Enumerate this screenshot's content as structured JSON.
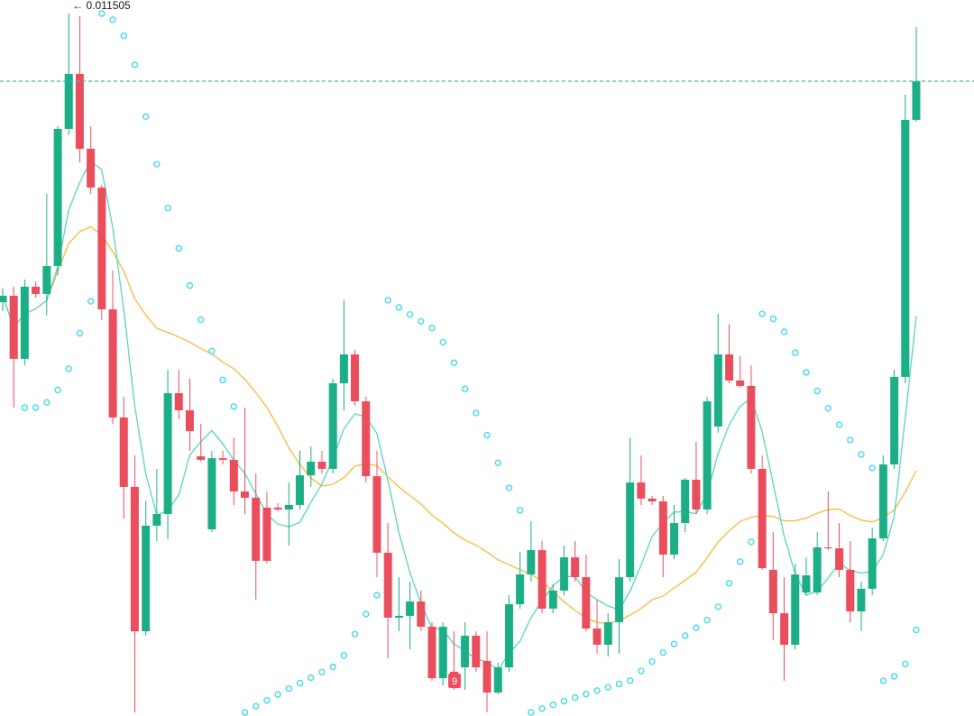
{
  "chart_data": {
    "type": "candlestick",
    "high_label": "← 0.011505",
    "annotation": "9",
    "up_color": "#1cae86",
    "down_color": "#ea4d5c",
    "fast_ma_color": "#58d3c0",
    "slow_ma_color": "#f6b93b",
    "sar_color": "#35d6ea",
    "last_price_color": "#3fb9b4",
    "ylim": [
      0.008389,
      0.011565
    ],
    "open": [
      0.010225,
      0.010253,
      0.009973,
      0.010293,
      0.010261,
      0.010385,
      0.010993,
      0.011237,
      0.010905,
      0.010733,
      0.010193,
      0.009713,
      0.009405,
      0.008765,
      0.009233,
      0.009285,
      0.009821,
      0.009745,
      0.009541,
      0.009217,
      0.009533,
      0.009525,
      0.009385,
      0.009357,
      0.009313,
      0.009313,
      0.009305,
      0.009325,
      0.009457,
      0.009517,
      0.009485,
      0.009865,
      0.009993,
      0.009785,
      0.009453,
      0.009113,
      0.008825,
      0.008833,
      0.008897,
      0.008785,
      0.008557,
      0.008585,
      0.008605,
      0.008745,
      0.008633,
      0.008493,
      0.008605,
      0.008885,
      0.009017,
      0.009125,
      0.008865,
      0.008945,
      0.009093,
      0.009005,
      0.008777,
      0.008705,
      0.008805,
      0.009005,
      0.009425,
      0.009353,
      0.009341,
      0.009105,
      0.009245,
      0.009437,
      0.009305,
      0.009673,
      0.009993,
      0.009877,
      0.009853,
      0.009485,
      0.009037,
      0.008845,
      0.008705,
      0.008937,
      0.008937,
      0.009137,
      0.009133,
      0.009037,
      0.008853,
      0.008953,
      0.009177,
      0.009505,
      0.009893,
      0.011033
    ],
    "high": [
      0.010285,
      0.010293,
      0.010325,
      0.010317,
      0.010705,
      0.011005,
      0.011505,
      0.011493,
      0.011005,
      0.010745,
      0.010365,
      0.009805,
      0.009545,
      0.009345,
      0.009485,
      0.009925,
      0.009925,
      0.009885,
      0.009685,
      0.009565,
      0.009565,
      0.009625,
      0.009757,
      0.009465,
      0.009385,
      0.009333,
      0.009425,
      0.009565,
      0.009585,
      0.009565,
      0.009885,
      0.010233,
      0.010013,
      0.009805,
      0.009565,
      0.009245,
      0.009005,
      0.008985,
      0.008945,
      0.008805,
      0.008805,
      0.008765,
      0.008805,
      0.008765,
      0.008765,
      0.008625,
      0.008925,
      0.009117,
      0.009253,
      0.009165,
      0.008973,
      0.009145,
      0.009165,
      0.009105,
      0.008905,
      0.008845,
      0.009085,
      0.009625,
      0.009545,
      0.009365,
      0.009365,
      0.009325,
      0.009445,
      0.009605,
      0.009805,
      0.010173,
      0.010125,
      0.009985,
      0.009945,
      0.009545,
      0.009205,
      0.009005,
      0.009065,
      0.009093,
      0.009205,
      0.009385,
      0.009245,
      0.009165,
      0.008985,
      0.009225,
      0.009545,
      0.009925,
      0.011145,
      0.011445
    ],
    "low": [
      0.010185,
      0.009757,
      0.009945,
      0.010245,
      0.010165,
      0.010345,
      0.010965,
      0.010845,
      0.010705,
      0.010145,
      0.009685,
      0.009265,
      0.008405,
      0.008745,
      0.009165,
      0.009173,
      0.009705,
      0.009565,
      0.009517,
      0.009205,
      0.009505,
      0.009325,
      0.009285,
      0.008905,
      0.009065,
      0.009297,
      0.009145,
      0.009305,
      0.009405,
      0.009465,
      0.009465,
      0.009745,
      0.009765,
      0.009425,
      0.009005,
      0.008645,
      0.008765,
      0.008685,
      0.008765,
      0.008545,
      0.008525,
      0.008505,
      0.008505,
      0.008585,
      0.008405,
      0.008485,
      0.008585,
      0.008865,
      0.008985,
      0.008845,
      0.008845,
      0.008925,
      0.008985,
      0.008765,
      0.008665,
      0.008653,
      0.008665,
      0.008985,
      0.009325,
      0.009325,
      0.009005,
      0.009085,
      0.009205,
      0.009285,
      0.009285,
      0.009645,
      0.009865,
      0.009845,
      0.009465,
      0.009037,
      0.008725,
      0.008545,
      0.008685,
      0.008925,
      0.008925,
      0.009125,
      0.009005,
      0.008805,
      0.008765,
      0.008925,
      0.009165,
      0.009485,
      0.009865,
      0.011025
    ],
    "close": [
      0.010253,
      0.009973,
      0.010293,
      0.010261,
      0.010385,
      0.010993,
      0.011237,
      0.010905,
      0.010733,
      0.010193,
      0.009713,
      0.009405,
      0.008765,
      0.009233,
      0.009285,
      0.009821,
      0.009745,
      0.009653,
      0.009525,
      0.009533,
      0.009525,
      0.009385,
      0.009357,
      0.009077,
      0.009077,
      0.009305,
      0.009325,
      0.009457,
      0.009517,
      0.009485,
      0.009865,
      0.009993,
      0.009785,
      0.009453,
      0.009113,
      0.008825,
      0.008833,
      0.008897,
      0.008785,
      0.008557,
      0.008785,
      0.008517,
      0.008745,
      0.008605,
      0.008493,
      0.008605,
      0.008885,
      0.009017,
      0.009125,
      0.008865,
      0.008945,
      0.009093,
      0.009005,
      0.008777,
      0.008705,
      0.008805,
      0.009005,
      0.009425,
      0.009353,
      0.009341,
      0.009105,
      0.009245,
      0.009437,
      0.009305,
      0.009785,
      0.009993,
      0.009877,
      0.009853,
      0.009485,
      0.009045,
      0.008845,
      0.008705,
      0.009017,
      0.009013,
      0.009137,
      0.009133,
      0.009037,
      0.008853,
      0.008953,
      0.009177,
      0.009505,
      0.009893,
      0.011033,
      0.011205
    ]
  }
}
